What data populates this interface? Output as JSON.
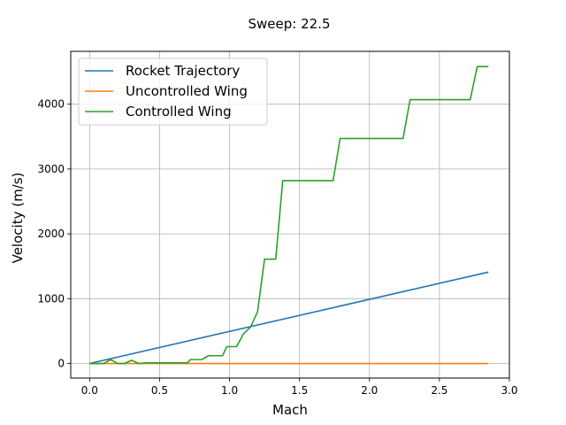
{
  "chart_data": {
    "type": "line",
    "title": "Sweep: 22.5",
    "xlabel": "Mach",
    "ylabel": "Velocity (m/s)",
    "xlim": [
      -0.135,
      3.0
    ],
    "ylim": [
      -225,
      4815
    ],
    "xticks": [
      0.0,
      0.5,
      1.0,
      1.5,
      2.0,
      2.5,
      3.0
    ],
    "xtick_labels": [
      "0.0",
      "0.5",
      "1.0",
      "1.5",
      "2.0",
      "2.5",
      "3.0"
    ],
    "yticks": [
      0,
      1000,
      2000,
      3000,
      4000
    ],
    "ytick_labels": [
      "0",
      "1000",
      "2000",
      "3000",
      "4000"
    ],
    "grid": true,
    "legend_position": "top-left",
    "series": [
      {
        "name": "Rocket Trajectory",
        "color": "#1f77b4",
        "x": [
          0.0,
          2.85
        ],
        "y": [
          0,
          1410
        ]
      },
      {
        "name": "Uncontrolled Wing",
        "color": "#ff7f0e",
        "x": [
          0.0,
          2.85
        ],
        "y": [
          0,
          0
        ]
      },
      {
        "name": "Controlled Wing",
        "color": "#2ca02c",
        "x": [
          0.0,
          0.05,
          0.1,
          0.15,
          0.2,
          0.25,
          0.3,
          0.35,
          0.4,
          0.45,
          0.5,
          0.55,
          0.6,
          0.65,
          0.7,
          0.72,
          0.75,
          0.8,
          0.85,
          0.9,
          0.95,
          0.98,
          1.0,
          1.05,
          1.1,
          1.15,
          1.2,
          1.25,
          1.3,
          1.33,
          1.38,
          1.5,
          1.6,
          1.7,
          1.74,
          1.79,
          1.9,
          2.0,
          2.1,
          2.2,
          2.24,
          2.29,
          2.4,
          2.5,
          2.6,
          2.7,
          2.72,
          2.77,
          2.85
        ],
        "y": [
          0,
          0,
          0,
          60,
          0,
          0,
          50,
          0,
          10,
          10,
          10,
          10,
          10,
          10,
          10,
          60,
          60,
          60,
          120,
          120,
          120,
          260,
          260,
          260,
          460,
          560,
          800,
          1610,
          1610,
          1610,
          2820,
          2820,
          2820,
          2820,
          2820,
          3470,
          3470,
          3470,
          3470,
          3470,
          3470,
          4070,
          4070,
          4070,
          4070,
          4070,
          4070,
          4580,
          4580
        ]
      }
    ]
  }
}
